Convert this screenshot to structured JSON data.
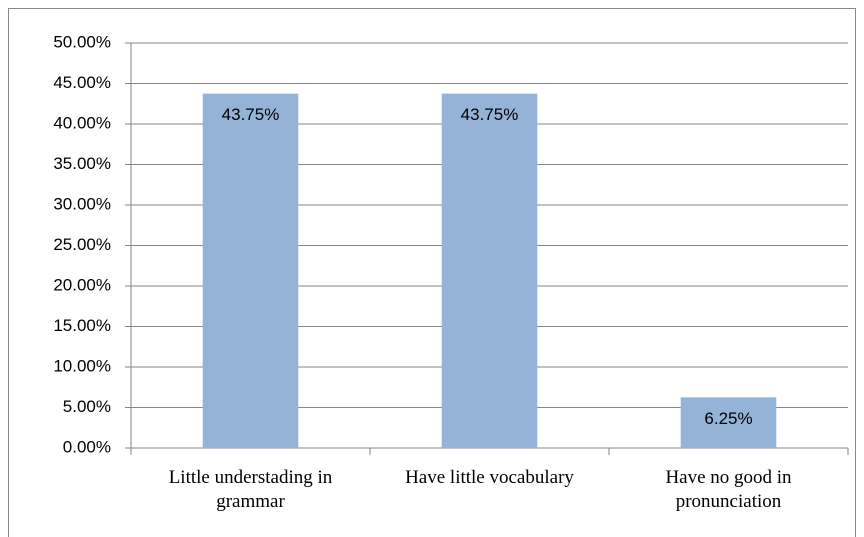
{
  "chart_data": {
    "type": "bar",
    "categories": [
      "Little understading in grammar",
      "Have little vocabulary",
      "Have no good in pronunciation"
    ],
    "values": [
      43.75,
      43.75,
      6.25
    ],
    "value_labels": [
      "43.75%",
      "43.75%",
      "6.25%"
    ],
    "color": "#95b3d7",
    "ylim": [
      0,
      50
    ],
    "yticks": [
      {
        "value": 0,
        "label": "0.00%"
      },
      {
        "value": 5,
        "label": "5.00%"
      },
      {
        "value": 10,
        "label": "10.00%"
      },
      {
        "value": 15,
        "label": "15.00%"
      },
      {
        "value": 20,
        "label": "20.00%"
      },
      {
        "value": 25,
        "label": "25.00%"
      },
      {
        "value": 30,
        "label": "30.00%"
      },
      {
        "value": 35,
        "label": "35.00%"
      },
      {
        "value": 40,
        "label": "40.00%"
      },
      {
        "value": 45,
        "label": "45.00%"
      },
      {
        "value": 50,
        "label": "50.00%"
      }
    ],
    "grid": true
  }
}
